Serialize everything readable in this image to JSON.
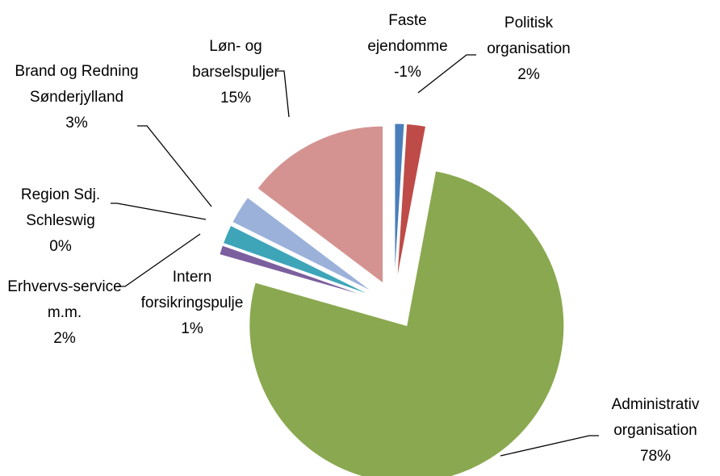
{
  "chart_data": {
    "type": "pie",
    "categories": [
      "Faste ejendomme",
      "Politisk organisation",
      "Administrativ organisation",
      "Intern forsikringspulje",
      "Erhvervs-service m.m.",
      "Region Sdj. Schleswig",
      "Brand og Redning Sønderjylland",
      "Løn- og barselspuljer"
    ],
    "values": [
      -1,
      2,
      78,
      1,
      2,
      0,
      3,
      15
    ],
    "value_labels": [
      "-1%",
      "2%",
      "78%",
      "1%",
      "2%",
      "0%",
      "3%",
      "15%"
    ],
    "colors": [
      "#4a7ebb",
      "#be4b48",
      "#8aa84f",
      "#7b5f9e",
      "#3ea5b9",
      "#9bb1d9",
      "#9bb1d9",
      "#d49391"
    ]
  }
}
